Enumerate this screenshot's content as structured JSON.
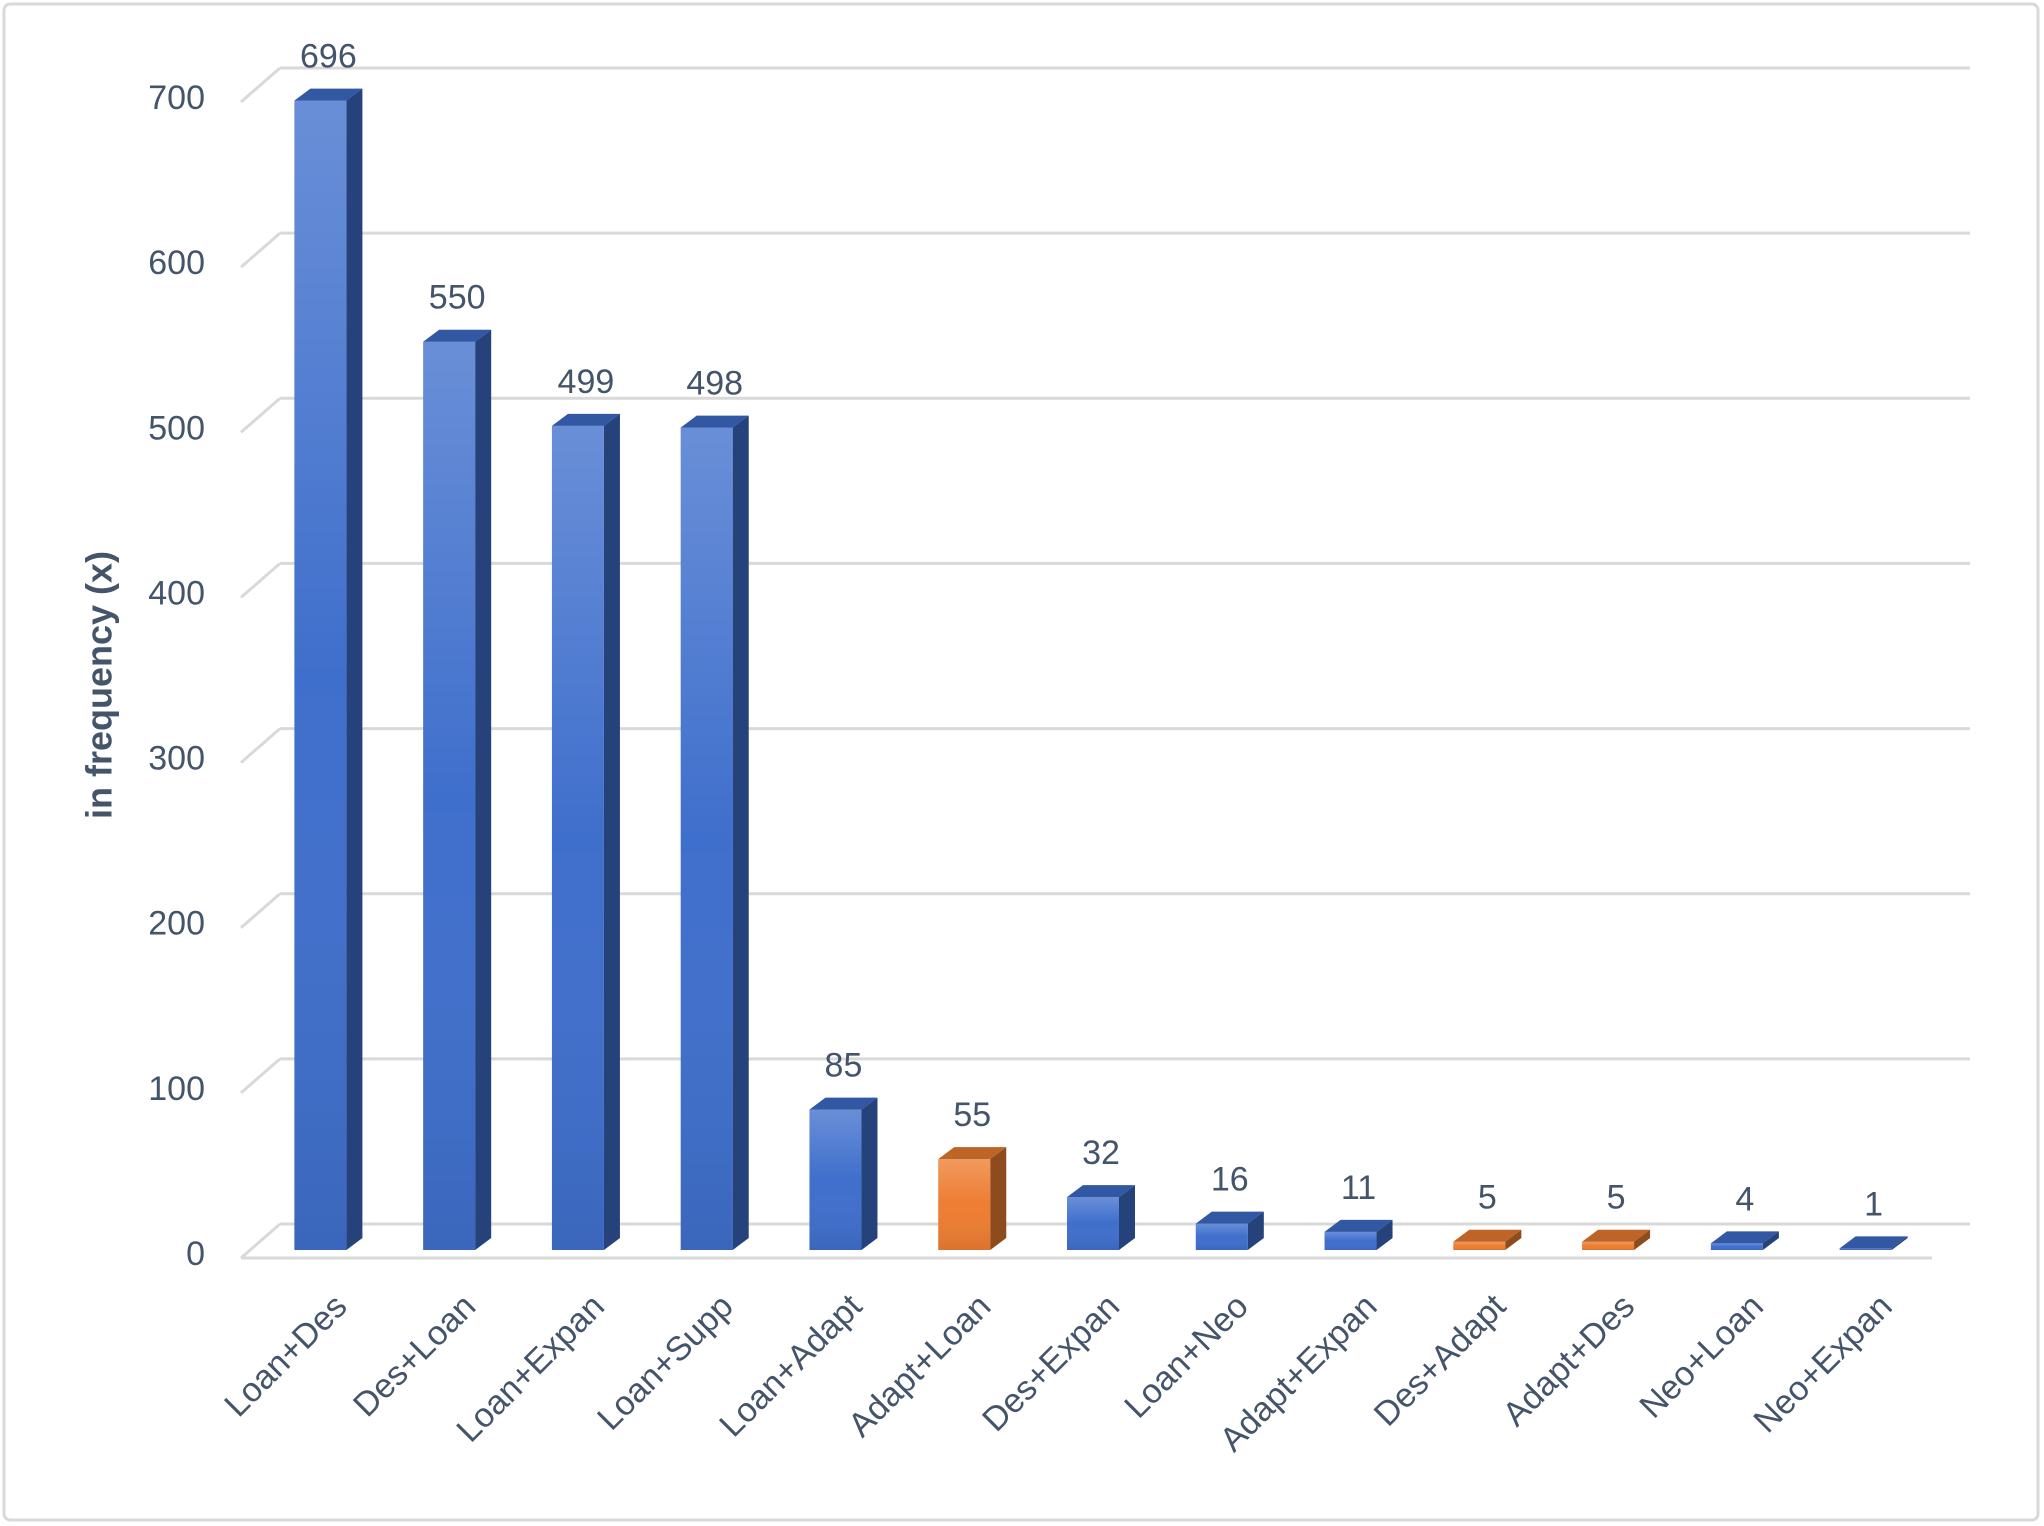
{
  "chart_data": {
    "type": "bar3d",
    "y_label": "in frequency (x)",
    "categories": [
      "Loan+Des",
      "Des+Loan",
      "Loan+Expan",
      "Loan+Supp",
      "Loan+Adapt",
      "Adapt+Loan",
      "Des+Expan",
      "Loan+Neo",
      "Adapt+Expan",
      "Des+Adapt",
      "Adapt+Des",
      "Neo+Loan",
      "Neo+Expan"
    ],
    "values": [
      696,
      550,
      499,
      498,
      85,
      55,
      32,
      16,
      11,
      5,
      5,
      4,
      1
    ],
    "colors": [
      "#3f6fcc",
      "#3f6fcc",
      "#3f6fcc",
      "#3f6fcc",
      "#3f6fcc",
      "#ed7d31",
      "#3f6fcc",
      "#3f6fcc",
      "#3f6fcc",
      "#ed7d31",
      "#ed7d31",
      "#3f6fcc",
      "#3f6fcc"
    ],
    "ylim": [
      0,
      700
    ],
    "yticks": [
      0,
      100,
      200,
      300,
      400,
      500,
      600,
      700
    ],
    "grid": true
  }
}
